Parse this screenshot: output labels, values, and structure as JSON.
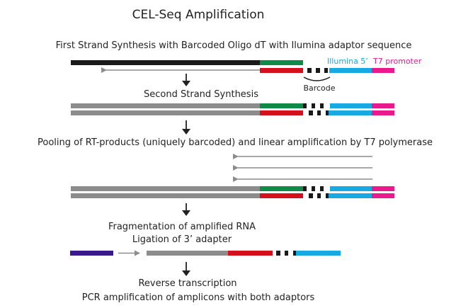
{
  "title": "CEL-Seq Amplification",
  "steps": {
    "first_strand": "First Strand Synthesis with Barcoded Oligo dT with Ilumina adaptor sequence",
    "second_strand": "Second Strand Synthesis",
    "pooling": "Pooling of RT-products (uniquely barcoded) and linear amplification by T7 polymerase",
    "fragmentation": "Fragmentation of amplified RNA",
    "ligation": "Ligation of 3’ adapter",
    "reverse_transcription": "Reverse transcription",
    "pcr": "PCR amplification of amplicons with both adaptors"
  },
  "labels": {
    "illumina": "Illumina 5’",
    "t7": "T7 promoter",
    "barcode": "Barcode"
  },
  "colors": {
    "mrna": "#1a1a1a",
    "cdna": "#8c8c8c",
    "oligo_dt_top": "#0f8a47",
    "oligo_dt_bottom": "#d4101d",
    "illumina": "#17a9e1",
    "t7": "#ea1a8c",
    "adapter_3p": "#3a1a8a",
    "barcode": "#1a1a1a"
  }
}
